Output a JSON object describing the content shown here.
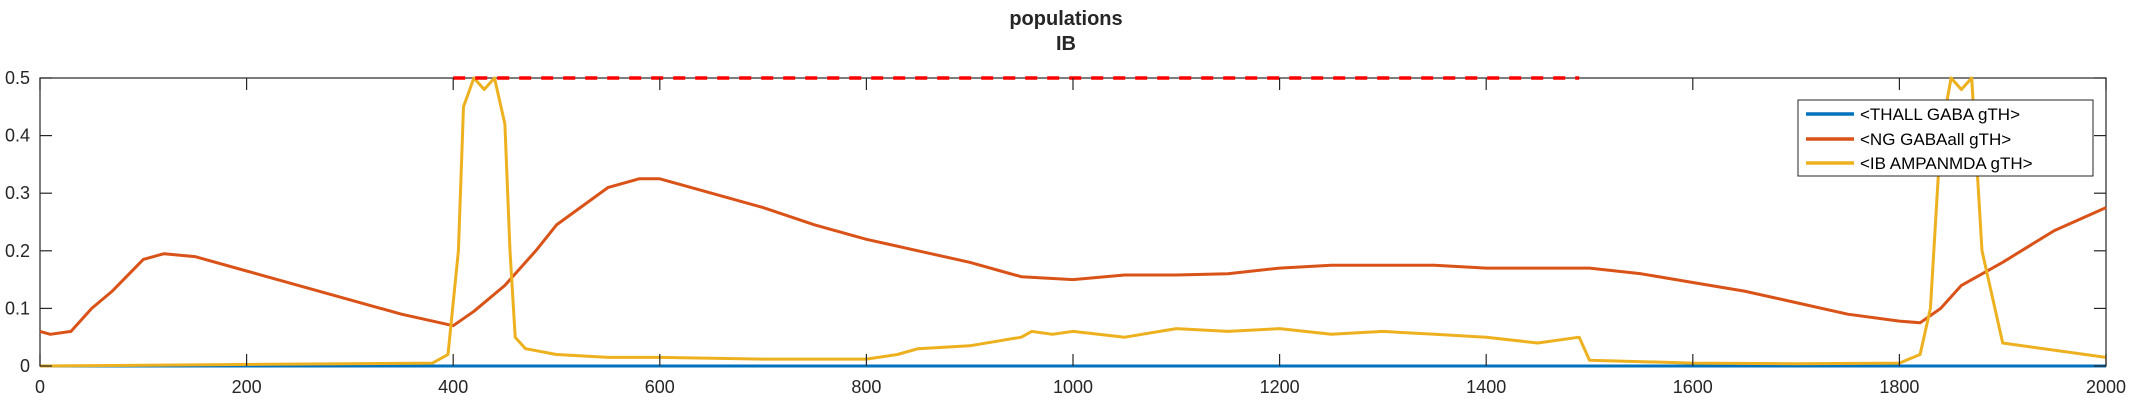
{
  "chart_data": {
    "type": "line",
    "title": "populations",
    "subtitle": "IB",
    "xlim": [
      0,
      2000
    ],
    "ylim": [
      0,
      0.5
    ],
    "xticks": [
      0,
      200,
      400,
      600,
      800,
      1000,
      1200,
      1400,
      1600,
      1800,
      2000
    ],
    "yticks": [
      0,
      0.1,
      0.2,
      0.3,
      0.4,
      0.5
    ],
    "ytick_labels": [
      "0",
      "0.1",
      "0.2",
      "0.3",
      "0.4",
      "0.5"
    ],
    "grid": false,
    "legend_placement": "top-right",
    "series": [
      {
        "name": "<THALL GABA gTH>",
        "color": "#0072BD",
        "x": [
          0,
          2000
        ],
        "y": [
          0,
          0
        ]
      },
      {
        "name": "<NG GABAall gTH>",
        "color": "#D95319",
        "x": [
          0,
          10,
          30,
          50,
          70,
          100,
          120,
          150,
          200,
          250,
          300,
          350,
          400,
          420,
          450,
          480,
          500,
          550,
          580,
          600,
          650,
          700,
          750,
          800,
          850,
          900,
          930,
          950,
          1000,
          1050,
          1100,
          1150,
          1200,
          1250,
          1300,
          1350,
          1400,
          1450,
          1500,
          1550,
          1600,
          1650,
          1700,
          1750,
          1800,
          1820,
          1840,
          1860,
          1900,
          1950,
          2000
        ],
        "y": [
          0.06,
          0.055,
          0.06,
          0.1,
          0.13,
          0.185,
          0.195,
          0.19,
          0.165,
          0.14,
          0.115,
          0.09,
          0.07,
          0.095,
          0.14,
          0.2,
          0.245,
          0.31,
          0.325,
          0.325,
          0.3,
          0.275,
          0.245,
          0.22,
          0.2,
          0.18,
          0.165,
          0.155,
          0.15,
          0.158,
          0.158,
          0.16,
          0.17,
          0.175,
          0.175,
          0.175,
          0.17,
          0.17,
          0.17,
          0.16,
          0.145,
          0.13,
          0.11,
          0.09,
          0.078,
          0.075,
          0.1,
          0.14,
          0.18,
          0.235,
          0.275
        ]
      },
      {
        "name": "<IB AMPANMDA gTH>",
        "color": "#EDB120",
        "x": [
          0,
          380,
          395,
          405,
          410,
          420,
          430,
          440,
          450,
          455,
          460,
          470,
          500,
          550,
          600,
          700,
          800,
          830,
          850,
          900,
          950,
          960,
          980,
          1000,
          1050,
          1100,
          1150,
          1200,
          1250,
          1300,
          1350,
          1400,
          1450,
          1490,
          1500,
          1600,
          1700,
          1800,
          1820,
          1830,
          1840,
          1850,
          1860,
          1870,
          1880,
          1900,
          2000
        ],
        "y": [
          0,
          0.005,
          0.02,
          0.2,
          0.45,
          0.5,
          0.48,
          0.5,
          0.42,
          0.2,
          0.05,
          0.03,
          0.02,
          0.015,
          0.015,
          0.012,
          0.012,
          0.02,
          0.03,
          0.035,
          0.05,
          0.06,
          0.055,
          0.06,
          0.05,
          0.065,
          0.06,
          0.065,
          0.055,
          0.06,
          0.055,
          0.05,
          0.04,
          0.05,
          0.01,
          0.005,
          0.004,
          0.005,
          0.02,
          0.1,
          0.4,
          0.5,
          0.48,
          0.5,
          0.2,
          0.04,
          0.015
        ]
      },
      {
        "name": "",
        "color": "#FF0000",
        "dashed": true,
        "x": [
          400,
          1490
        ],
        "y": [
          0.5,
          0.5
        ]
      }
    ]
  }
}
